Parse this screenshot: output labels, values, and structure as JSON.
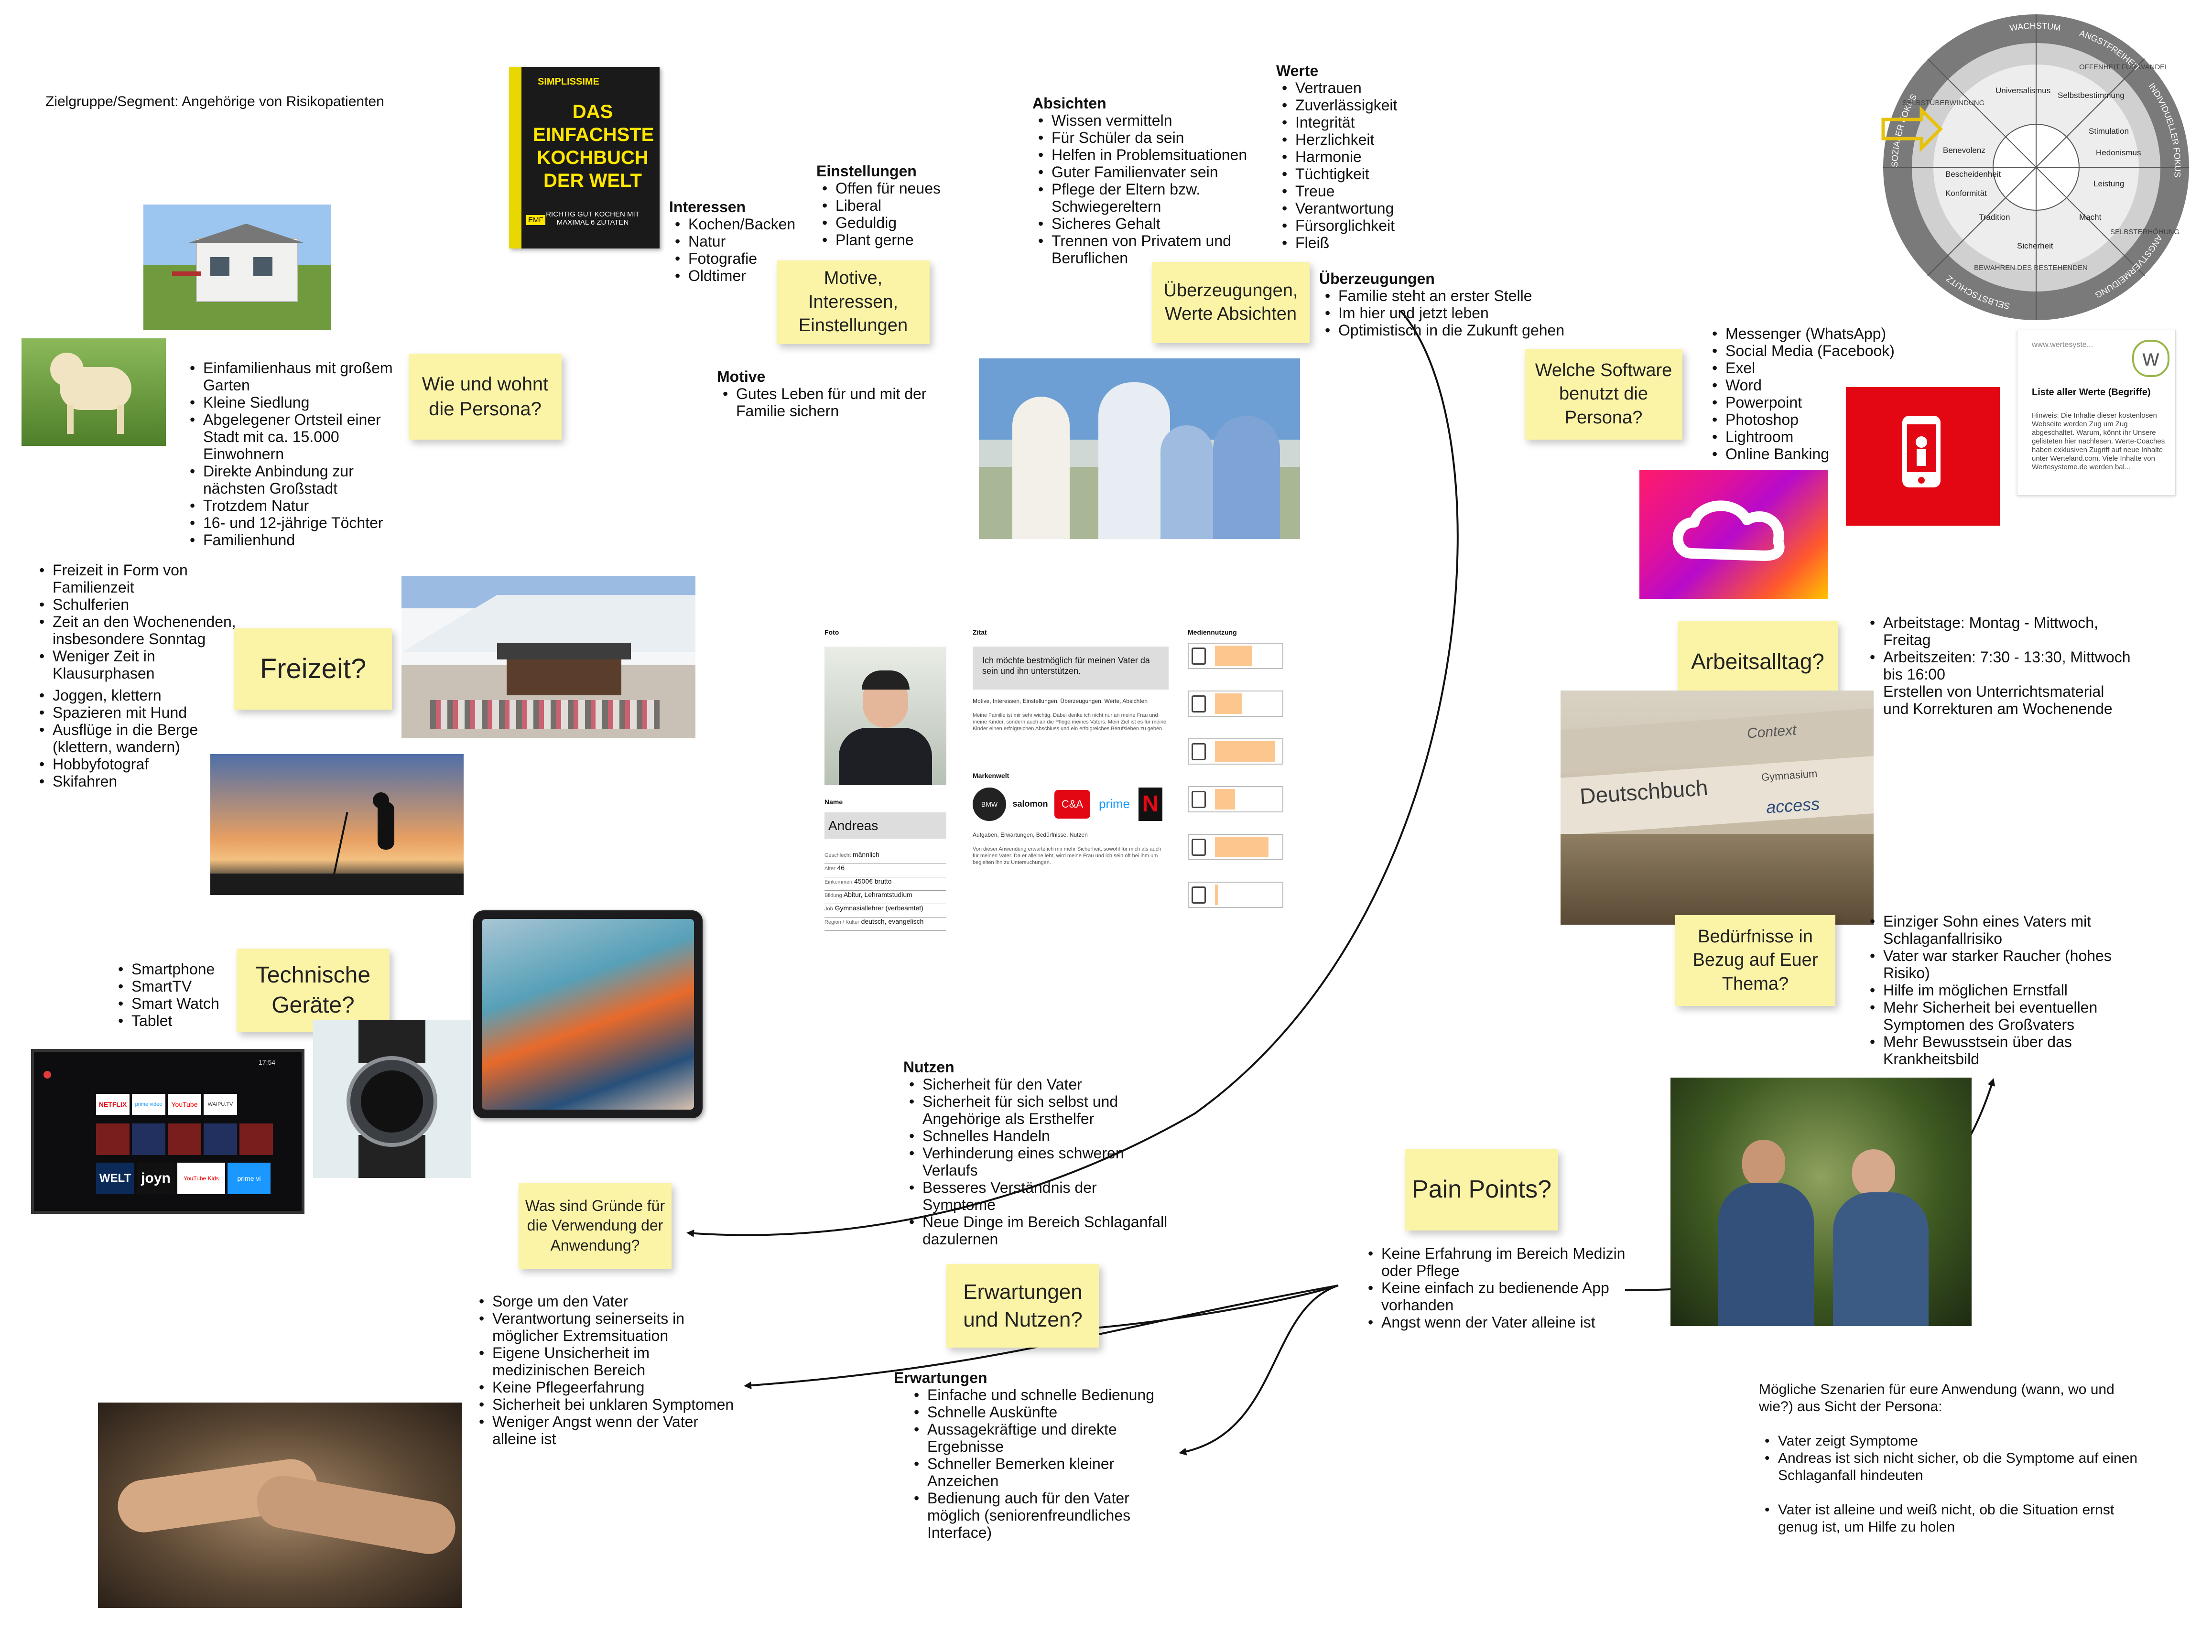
{
  "segment_label": "Zielgruppe/Segment: Angehörige von Risikopatienten",
  "stickies": {
    "wohnt": "Wie und wohnt die Persona?",
    "motive": "Motive, Interessen, Einstellungen",
    "ueberzeugungen": "Überzeugungen, Werte Absichten",
    "software": "Welche Software benutzt die Persona?",
    "freizeit": "Freizeit?",
    "geraete": "Technische Geräte?",
    "arbeitsalltag": "Arbeitsalltag?",
    "beduerfnisse": "Bedürfnisse in Bezug auf Euer Thema?",
    "gruende": "Was sind Gründe für die Verwendung der Anwendung?",
    "erwartungen": "Erwartungen und Nutzen?",
    "pain": "Pain Points?"
  },
  "book": {
    "brand": "SIMPLISSIME",
    "title": "DAS EINFACHSTE KOCHBUCH DER WELT",
    "subtitle": "RICHTIG GUT KOCHEN MIT MAXIMAL 6 ZUTATEN",
    "publisher": "EMF"
  },
  "interessen": {
    "heading": "Interessen",
    "items": [
      "Kochen/Backen",
      "Natur",
      "Fotografie",
      "Oldtimer"
    ]
  },
  "einstellungen": {
    "heading": "Einstellungen",
    "items": [
      "Offen für neues",
      "Liberal",
      "Geduldig",
      "Plant gerne"
    ]
  },
  "motive": {
    "heading": "Motive",
    "items": [
      "Gutes Leben für und mit der Familie sichern"
    ]
  },
  "absichten": {
    "heading": "Absichten",
    "items": [
      "Wissen vermitteln",
      "Für Schüler da sein",
      "Helfen in Problemsituationen",
      "Guter Familienvater sein",
      "Pflege der Eltern bzw. Schwiegereltern",
      "Sicheres Gehalt",
      "Trennen von Privatem und Beruflichen"
    ]
  },
  "werte": {
    "heading": "Werte",
    "items": [
      "Vertrauen",
      "Zuverlässigkeit",
      "Integrität",
      "Herzlichkeit",
      "Harmonie",
      "Tüchtigkeit",
      "Treue",
      "Verantwortung",
      "Fürsorglichkeit",
      "Fleiß"
    ]
  },
  "ueberzeugungen": {
    "heading": "Überzeugungen",
    "items": [
      "Familie steht an erster Stelle",
      "Im hier und jetzt leben",
      "Optimistisch in die Zukunft gehen"
    ]
  },
  "wohnen": {
    "items": [
      "Einfamilienhaus mit großem Garten",
      "Kleine Siedlung",
      "Abgelegener Ortsteil einer Stadt mit ca. 15.000 Einwohnern",
      "Direkte Anbindung zur nächsten Großstadt",
      "Trotzdem Natur",
      "16- und 12-jährige Töchter",
      "Familienhund"
    ]
  },
  "software": {
    "items": [
      "Messenger (WhatsApp)",
      "Social Media (Facebook)",
      "Exel",
      "Word",
      "Powerpoint",
      "Photoshop",
      "Lightroom",
      "Online Banking"
    ]
  },
  "werte_card": {
    "site": "www.wertesyste...",
    "title": "Liste aller Werte (Begriffe)",
    "text": "Hinweis: Die Inhalte dieser kostenlosen Webseite werden Zug um Zug abgeschaltet. Warum, könnt ihr Unsere gelisteten hier nachlesen. Werte-Coaches haben exklusiven Zugriff auf neue Inhalte unter Werteland.com. Viele Inhalte von Wertesysteme.de werden bal..."
  },
  "wheel": {
    "outer": [
      "WACHSTUM",
      "ANGSTFREIHEIT",
      "INDIVIDUELLER FOKUS",
      "ANGSTVERMEIDUNG",
      "SELBSTSCHUTZ",
      "SOZIALER FOKUS"
    ],
    "middle": [
      "OFFENHEIT FÜR WANDEL",
      "SELBSTERHÖHUNG",
      "BEWAHREN DES BESTEHENDEN",
      "SELBSTÜBERWINDUNG"
    ],
    "inner": [
      "Universalismus",
      "Selbstbestimmung",
      "Stimulation",
      "Hedonismus",
      "Leistung",
      "Macht",
      "Sicherheit",
      "Tradition",
      "Konformität",
      "Benevolenz",
      "Bescheidenheit"
    ]
  },
  "freizeit": {
    "items": [
      "Freizeit in Form von Familienzeit",
      "Schulferien",
      "Zeit an den Wochenenden, insbesondere Sonntag",
      "Weniger Zeit in Klausurphasen",
      "Joggen, klettern",
      "Spazieren mit Hund",
      "Ausflüge in die Berge (klettern, wandern)",
      "Hobbyfotograf",
      "Skifahren"
    ]
  },
  "geraete": {
    "items": [
      "Smartphone",
      "SmartTV",
      "Smart Watch",
      "Tablet"
    ]
  },
  "tv": {
    "apps": [
      "NETFLIX",
      "prime video",
      "YouTube",
      "WAIPU.TV",
      "WELT",
      "joyn",
      "YouTube Kids",
      "prime vi"
    ],
    "time": "17:54"
  },
  "arbeit": {
    "items": [
      "Arbeitstage: Montag - Mittwoch, Freitag",
      "Arbeitszeiten: 7:30 - 13:30, Mittwoch bis 16:00",
      "Erstellen von Unterrichtsmaterial und Korrekturen am Wochenende"
    ]
  },
  "books_photo": {
    "spine1": "Deutschbuch",
    "spine2": "access",
    "spine3": "Context",
    "spine4": "Gymnasium"
  },
  "beduerfnisse": {
    "items": [
      "Einziger Sohn eines Vaters mit Schlaganfallrisiko",
      "Vater war starker Raucher (hohes Risiko)",
      "Hilfe im möglichen Ernstfall",
      "Mehr Sicherheit bei eventuellen Symptomen des Großvaters",
      "Mehr Bewusstsein über das Krankheitsbild"
    ]
  },
  "persona_card": {
    "foto_label": "Foto",
    "zitat_label": "Zitat",
    "zitat": "Ich möchte bestmöglich für meinen Vater da sein und ihn unterstützen.",
    "motive_label": "Motive, Interessen, Einstellungen, Überzeugungen, Werte, Absichten",
    "motive_text": "Meine Familie ist mir sehr wichtig. Dabei denke ich nicht nur an meine Frau und meine Kinder, sondern auch an die Pflege meines Vaters. Mein Ziel ist es für meine Kinder einen erfolgreichen Abschluss und ein erfolgreiches Berufsleben zu geben.",
    "marken_label": "Markenwelt",
    "brands": [
      "BMW",
      "salomon",
      "C&A",
      "prime",
      "N"
    ],
    "aufgaben_label": "Aufgaben, Erwartungen, Bedürfnisse, Nutzen",
    "aufgaben_text": "Von dieser Anwendung erwarte ich mir mehr Sicherheit, sowohl für mich als auch für meinen Vater. Da er alleine lebt, wird meine Frau und ich sein oft bei ihm um begleiten ihn zu Untersuchungen.",
    "name_label": "Name",
    "name": "Andreas",
    "fields": [
      {
        "label": "Geschlecht",
        "value": "männlich"
      },
      {
        "label": "Alter",
        "value": "46"
      },
      {
        "label": "Einkommen",
        "value": "4500€ brutto"
      },
      {
        "label": "Bildung",
        "value": "Abitur, Lehramtstudium"
      },
      {
        "label": "Job",
        "value": "Gymnasiallehrer (verbeamtet)"
      },
      {
        "label": "Region / Kultur",
        "value": "deutsch, evangelisch"
      }
    ],
    "medien_label": "Mediennutzung",
    "media": [
      {
        "icon": "smartphone-icon",
        "level": 0.55
      },
      {
        "icon": "tablet-icon",
        "level": 0.4
      },
      {
        "icon": "laptop-icon",
        "level": 0.9
      },
      {
        "icon": "tv-icon",
        "level": 0.3
      },
      {
        "icon": "radio-icon",
        "level": 0.8
      },
      {
        "icon": "phone-icon",
        "level": 0.05
      }
    ]
  },
  "nutzen": {
    "heading": "Nutzen",
    "items": [
      "Sicherheit für den Vater",
      "Sicherheit für sich selbst und Angehörige als Ersthelfer",
      "Schnelles Handeln",
      "Verhinderung eines schweren Verlaufs",
      "Besseres Verständnis der Symptome",
      "Neue Dinge im Bereich Schlaganfall dazulernen"
    ]
  },
  "gruende": {
    "items": [
      "Sorge um den Vater",
      "Verantwortung seinerseits in möglicher Extremsituation",
      "Eigene Unsicherheit im medizinischen Bereich",
      "Keine Pflegeerfahrung",
      "Sicherheit bei unklaren Symptomen",
      "Weniger Angst wenn der Vater alleine ist"
    ]
  },
  "erwartungen": {
    "heading": "Erwartungen",
    "items": [
      "Einfache und schnelle Bedienung",
      "Schnelle Auskünfte",
      "Aussagekräftige und direkte Ergebnisse",
      "Schneller Bemerken kleiner Anzeichen",
      "Bedienung auch für den Vater möglich (seniorenfreundliches Interface)"
    ]
  },
  "pain": {
    "items": [
      "Keine Erfahrung im Bereich Medizin oder Pflege",
      "Keine einfach zu bedienende App vorhanden",
      "Angst wenn der Vater alleine ist"
    ]
  },
  "szenarien": {
    "intro": "Mögliche Szenarien für eure Anwendung (wann, wo und wie?) aus Sicht der Persona:",
    "items": [
      "Vater zeigt Symptome",
      "Andreas ist sich nicht sicher, ob die Symptome auf einen Schlaganfall hindeuten"
    ],
    "items2": [
      "Vater ist alleine und weiß nicht, ob die Situation ernst genug ist, um Hilfe zu holen"
    ]
  },
  "colors": {
    "sticky": "#fbf4a6",
    "accent_red": "#e30613"
  }
}
